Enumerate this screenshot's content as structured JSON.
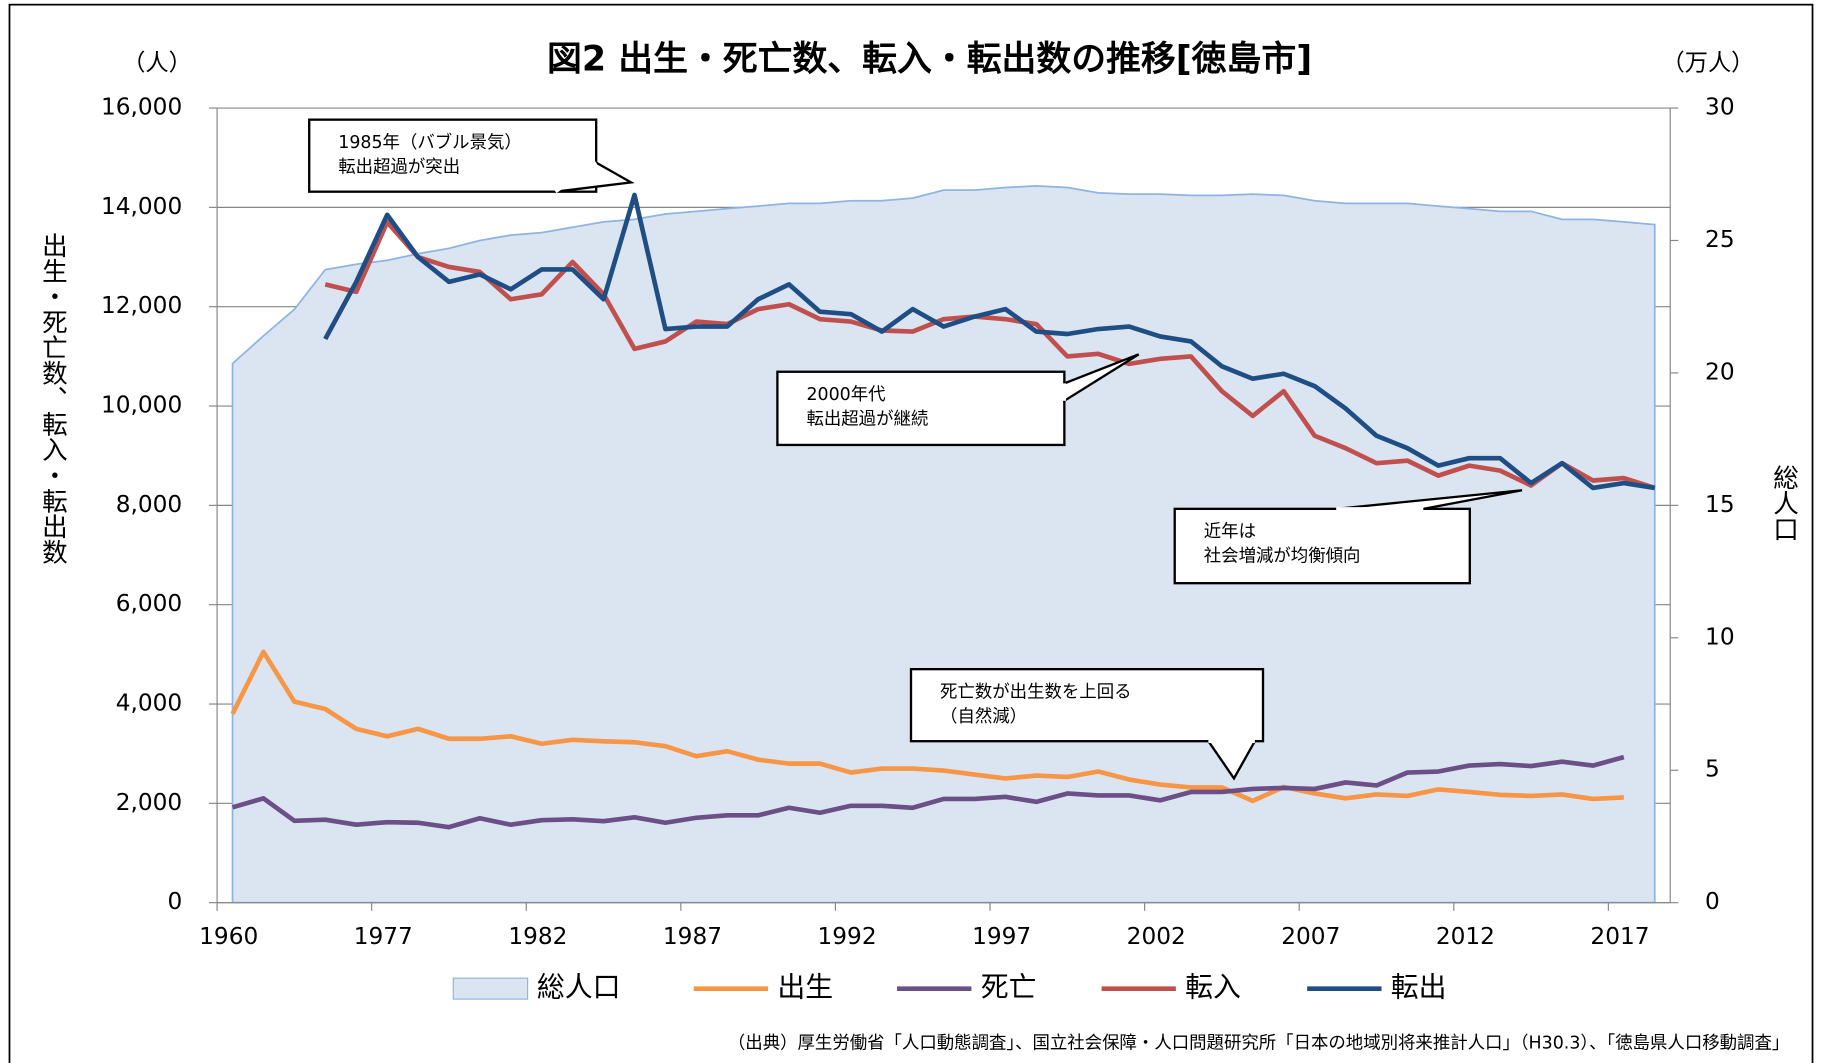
{
  "chart_data": {
    "type": "line",
    "title": "図2 出生・死亡数、転入・転出数の推移[徳島市]",
    "y_unit": "（人）",
    "y2_unit": "（万人）",
    "ylabel": "出生・死亡数、転入・転出数",
    "y2label": "総人口",
    "categories": [
      "1960",
      null,
      null,
      null,
      null,
      "1977",
      null,
      null,
      null,
      null,
      "1982",
      null,
      null,
      null,
      null,
      "1987",
      null,
      null,
      null,
      null,
      "1992",
      null,
      null,
      null,
      null,
      "1997",
      null,
      null,
      null,
      null,
      "2002",
      null,
      null,
      null,
      null,
      "2007",
      null,
      null,
      null,
      null,
      "2012",
      null,
      null,
      null,
      null,
      "2017",
      null
    ],
    "ylim": [
      0,
      16000
    ],
    "yticks": [
      0,
      {
        "value": 2000,
        "label": "2,000"
      },
      {
        "value": 4000,
        "label": "4,000"
      },
      {
        "value": 6000,
        "label": "6,000"
      },
      {
        "value": 8000,
        "label": "8,000"
      },
      {
        "value": 10000,
        "label": "10,000"
      },
      {
        "value": 12000,
        "label": "12,000"
      },
      {
        "value": 14000,
        "label": "14,000"
      },
      {
        "value": 16000,
        "label": "16,000"
      }
    ],
    "y2lim": [
      0,
      30
    ],
    "y2ticks": [
      0,
      5,
      10,
      15,
      20,
      25,
      30
    ],
    "grid": true,
    "legend": "bottom",
    "series": [
      {
        "name": "総人口",
        "type": "area",
        "axis": "y2",
        "color": "#dbe5f1",
        "edge_color": "#8db4e2",
        "values": [
          20.35,
          21.4,
          22.4,
          23.9,
          24.1,
          24.25,
          24.5,
          24.7,
          25.0,
          25.2,
          25.3,
          25.5,
          25.7,
          25.8,
          26.0,
          26.1,
          26.2,
          26.3,
          26.4,
          26.4,
          26.5,
          26.5,
          26.6,
          26.9,
          26.9,
          27.0,
          27.06,
          27.0,
          26.8,
          26.75,
          26.75,
          26.7,
          26.7,
          26.75,
          26.7,
          26.5,
          26.4,
          26.4,
          26.4,
          26.3,
          26.2,
          26.1,
          26.1,
          25.8,
          25.8,
          25.7,
          25.6
        ]
      },
      {
        "name": "出生",
        "color": "#f79646",
        "values": [
          3800,
          5050,
          4050,
          3900,
          3500,
          3350,
          3500,
          3300,
          3300,
          3350,
          3200,
          3280,
          3250,
          3230,
          3150,
          2950,
          3050,
          2880,
          2800,
          2800,
          2620,
          2700,
          2700,
          2660,
          2580,
          2500,
          2560,
          2530,
          2640,
          2480,
          2380,
          2320,
          2320,
          2050,
          2330,
          2200,
          2100,
          2180,
          2150,
          2280,
          2230,
          2170,
          2150,
          2180,
          2090,
          2120,
          null
        ]
      },
      {
        "name": "死亡",
        "color": "#6b4f86",
        "values": [
          1920,
          2100,
          1650,
          1670,
          1570,
          1620,
          1610,
          1520,
          1700,
          1570,
          1660,
          1680,
          1640,
          1720,
          1610,
          1710,
          1760,
          1760,
          1910,
          1810,
          1950,
          1950,
          1910,
          2090,
          2090,
          2130,
          2030,
          2200,
          2160,
          2160,
          2060,
          2230,
          2230,
          2290,
          2310,
          2290,
          2420,
          2360,
          2620,
          2640,
          2760,
          2790,
          2750,
          2840,
          2760,
          2930,
          null
        ]
      },
      {
        "name": "転入",
        "color": "#c0504d",
        "values": [
          null,
          null,
          null,
          12450,
          12300,
          13700,
          13000,
          12800,
          12700,
          12150,
          12250,
          12900,
          12250,
          11150,
          11300,
          11700,
          11650,
          11950,
          12050,
          11750,
          11700,
          11520,
          11500,
          11750,
          11800,
          11750,
          11650,
          11000,
          11050,
          10850,
          10950,
          11000,
          10300,
          9800,
          10300,
          9400,
          9150,
          8850,
          8900,
          8600,
          8800,
          8700,
          8400,
          8850,
          8500,
          8550,
          8350
        ]
      },
      {
        "name": "転出",
        "color": "#1f4e85",
        "values": [
          null,
          null,
          null,
          11350,
          12500,
          13850,
          13000,
          12500,
          12650,
          12350,
          12750,
          12750,
          12150,
          14250,
          11550,
          11600,
          11600,
          12150,
          12450,
          11900,
          11850,
          11500,
          11950,
          11600,
          11800,
          11950,
          11500,
          11450,
          11550,
          11600,
          11400,
          11300,
          10800,
          10550,
          10650,
          10400,
          9950,
          9400,
          9150,
          8800,
          8950,
          8950,
          8450,
          8850,
          8350,
          8450,
          8350
        ]
      }
    ],
    "annotations": [
      {
        "lines": [
          "1985年（バブル景気）",
          "転出超過が突出"
        ]
      },
      {
        "lines": [
          "2000年代",
          "転出超過が継続"
        ]
      },
      {
        "lines": [
          "近年は",
          "社会増減が均衡傾向"
        ]
      },
      {
        "lines": [
          "死亡数が出生数を上回る",
          "（自然減）"
        ]
      }
    ],
    "source": "（出典）厚生労働省「人口動態調査」、国立社会保障・人口問題研究所「日本の地域別将来推計人口」（H30.3）、「徳島県人口移動調査」"
  }
}
